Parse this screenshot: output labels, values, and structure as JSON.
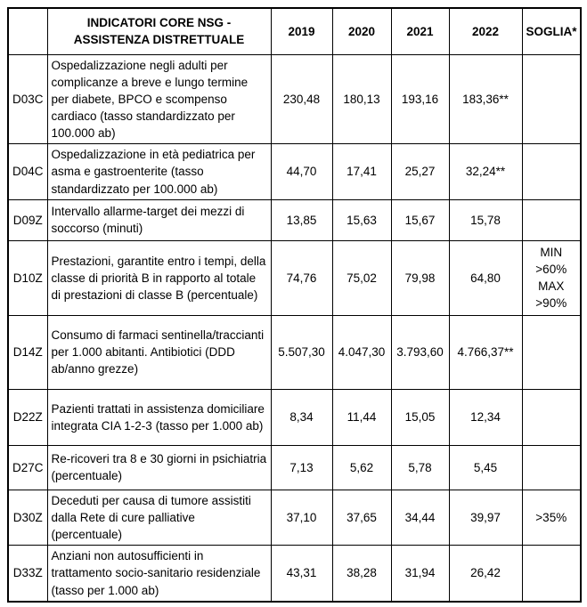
{
  "table": {
    "header": {
      "code": "",
      "indicator": "INDICATORI CORE NSG - ASSISTENZA DISTRETTUALE",
      "years": [
        "2019",
        "2020",
        "2021",
        "2022"
      ],
      "soglia": "SOGLIA*"
    },
    "rows": [
      {
        "code": "D03C",
        "indicator": "Ospedalizzazione negli adulti per complicanze a breve e lungo termine per diabete, BPCO e scompenso cardiaco (tasso standardizzato per 100.000 ab)",
        "values": [
          "230,48",
          "180,13",
          "193,16",
          "183,36**"
        ],
        "soglia": ""
      },
      {
        "code": "D04C",
        "indicator": "Ospedalizzazione in età pediatrica per asma e gastroenterite (tasso standardizzato per 100.000 ab)",
        "values": [
          "44,70",
          "17,41",
          "25,27",
          "32,24**"
        ],
        "soglia": ""
      },
      {
        "code": "D09Z",
        "indicator": "Intervallo allarme-target dei mezzi di soccorso (minuti)",
        "values": [
          "13,85",
          "15,63",
          "15,67",
          "15,78"
        ],
        "soglia": ""
      },
      {
        "code": "D10Z",
        "indicator": "Prestazioni, garantite entro i tempi, della classe di priorità B in rapporto al totale di prestazioni di classe B (percentuale)",
        "values": [
          "74,76",
          "75,02",
          "79,98",
          "64,80"
        ],
        "soglia": "MIN\n>60%\nMAX\n>90%"
      },
      {
        "code": "D14Z",
        "indicator": "Consumo di farmaci sentinella/traccianti per 1.000 abitanti. Antibiotici (DDD ab/anno grezze)",
        "values": [
          "5.507,30",
          "4.047,30",
          "3.793,60",
          "4.766,37**"
        ],
        "soglia": ""
      },
      {
        "code": "D22Z",
        "indicator": "Pazienti trattati in assistenza domiciliare integrata CIA 1-2-3 (tasso per 1.000 ab)",
        "values": [
          "8,34",
          "11,44",
          "15,05",
          "12,34"
        ],
        "soglia": ""
      },
      {
        "code": "D27C",
        "indicator": "Re-ricoveri tra 8 e 30 giorni in psichiatria (percentuale)",
        "values": [
          "7,13",
          "5,62",
          "5,78",
          "5,45"
        ],
        "soglia": ""
      },
      {
        "code": "D30Z",
        "indicator": "Deceduti per causa di tumore assistiti dalla Rete di cure palliative (percentuale)",
        "values": [
          "37,10",
          "37,65",
          "34,44",
          "39,97"
        ],
        "soglia": ">35%"
      },
      {
        "code": "D33Z",
        "indicator": "Anziani non autosufficienti in trattamento socio-sanitario residenziale (tasso per 1.000 ab)",
        "values": [
          "43,31",
          "38,28",
          "31,94",
          "26,42"
        ],
        "soglia": ""
      }
    ]
  }
}
